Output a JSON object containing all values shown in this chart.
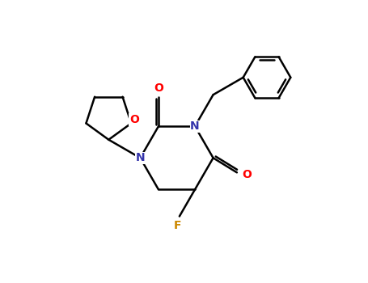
{
  "background_color": "#ffffff",
  "bond_color": "#000000",
  "atom_colors": {
    "O": "#ff0000",
    "N": "#3333aa",
    "F": "#cc8800",
    "C": "#000000"
  },
  "fig_width": 4.55,
  "fig_height": 3.5,
  "dpi": 100,
  "lw": 1.8,
  "fs": 10
}
